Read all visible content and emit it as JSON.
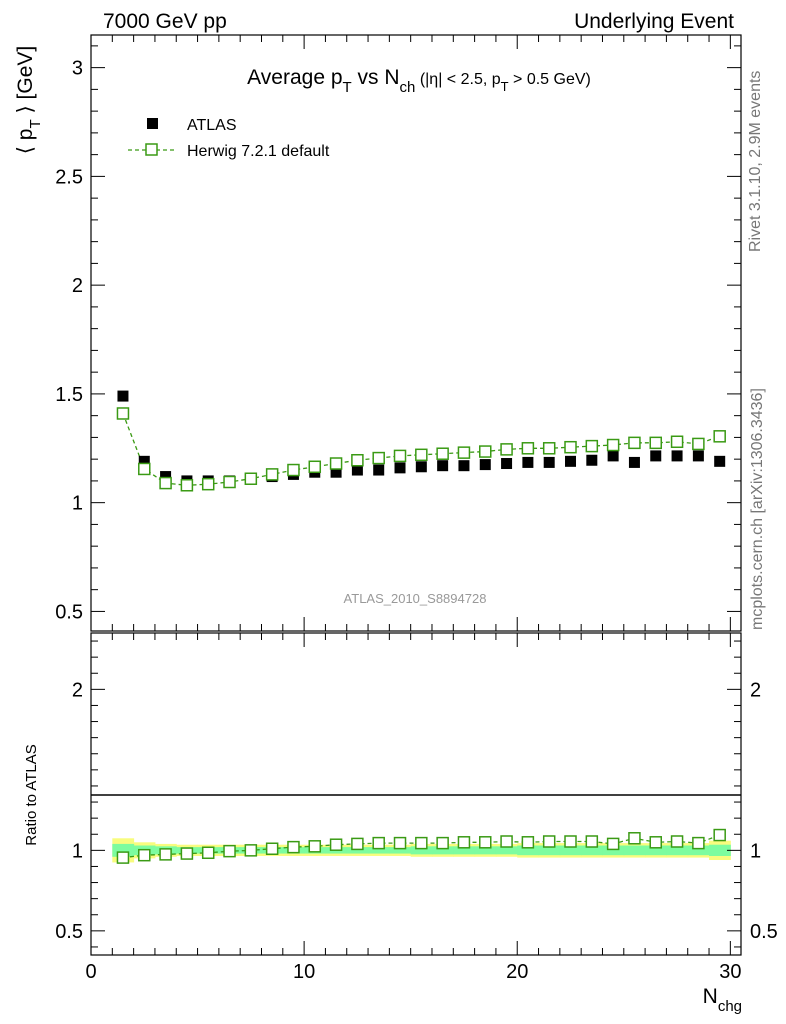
{
  "header": {
    "left": "7000 GeV pp",
    "right": "Underlying Event"
  },
  "side_labels": {
    "rivet": "Rivet 3.1.10,  2.9M events",
    "mcplots": "mcplots.cern.ch [arXiv:1306.3436]"
  },
  "analysis_id": "ATLAS_2010_S8894728",
  "colors": {
    "mc": "#3a9a14",
    "data": "#000000",
    "band_inner": "#7dfc9f",
    "band_outer": "#f8fc7e"
  },
  "chart_data": [
    {
      "type": "scatter",
      "panel": "main",
      "title": {
        "p1": "Average p",
        "p1_sub": "T",
        "p2": " vs N",
        "p2_sub": "ch",
        "p3": " (|η| < 2.5, p",
        "p3_sub": "T",
        "p4": " > 0.5 GeV)"
      },
      "ylabel": {
        "p1": "⟨ p",
        "p1_sub": "T",
        "p2": " ⟩ [GeV]"
      },
      "xlim": [
        0,
        30.5
      ],
      "ylim": [
        0.41,
        3.15
      ],
      "yticks": [
        "0.5",
        "1",
        "1.5",
        "2",
        "2.5",
        "3"
      ],
      "legend": {
        "position": "top-left"
      },
      "x": [
        1.5,
        2.5,
        3.5,
        4.5,
        5.5,
        6.5,
        7.5,
        8.5,
        9.5,
        10.5,
        11.5,
        12.5,
        13.5,
        14.5,
        15.5,
        16.5,
        17.5,
        18.5,
        19.5,
        20.5,
        21.5,
        22.5,
        23.5,
        24.5,
        25.5,
        26.5,
        27.5,
        28.5,
        29.5
      ],
      "series": [
        {
          "name": "ATLAS",
          "marker": "filled-square",
          "values": [
            1.49,
            1.19,
            1.12,
            1.1,
            1.1,
            1.1,
            1.11,
            1.12,
            1.13,
            1.14,
            1.14,
            1.15,
            1.15,
            1.16,
            1.165,
            1.17,
            1.17,
            1.175,
            1.18,
            1.185,
            1.185,
            1.19,
            1.195,
            1.215,
            1.185,
            1.215,
            1.215,
            1.215,
            1.19
          ]
        },
        {
          "name": "Herwig 7.2.1 default",
          "marker": "open-square-dashed",
          "values": [
            1.41,
            1.155,
            1.09,
            1.08,
            1.085,
            1.095,
            1.11,
            1.13,
            1.15,
            1.165,
            1.18,
            1.195,
            1.205,
            1.215,
            1.22,
            1.225,
            1.23,
            1.235,
            1.245,
            1.25,
            1.25,
            1.255,
            1.26,
            1.265,
            1.275,
            1.275,
            1.28,
            1.27,
            1.305
          ]
        }
      ]
    },
    {
      "type": "scatter",
      "panel": "ratio",
      "ylabel": "Ratio to ATLAS",
      "xlabel": {
        "p1": "N",
        "p1_sub": "chg"
      },
      "xlim": [
        0,
        30.5
      ],
      "ylim": [
        0.35,
        2.35
      ],
      "yticks": [
        "0.5",
        "1",
        "2"
      ],
      "xticks": [
        "0",
        "10",
        "20",
        "30"
      ],
      "x": [
        1.5,
        2.5,
        3.5,
        4.5,
        5.5,
        6.5,
        7.5,
        8.5,
        9.5,
        10.5,
        11.5,
        12.5,
        13.5,
        14.5,
        15.5,
        16.5,
        17.5,
        18.5,
        19.5,
        20.5,
        21.5,
        22.5,
        23.5,
        24.5,
        25.5,
        26.5,
        27.5,
        28.5,
        29.5
      ],
      "series": [
        {
          "name": "Herwig 7.2.1 default",
          "values": [
            0.955,
            0.97,
            0.975,
            0.98,
            0.985,
            0.995,
            1.0,
            1.01,
            1.02,
            1.025,
            1.035,
            1.04,
            1.045,
            1.045,
            1.045,
            1.045,
            1.05,
            1.05,
            1.055,
            1.05,
            1.055,
            1.055,
            1.055,
            1.04,
            1.075,
            1.05,
            1.055,
            1.045,
            1.095
          ]
        }
      ],
      "bands": {
        "inner_halfwidth": [
          0.04,
          0.03,
          0.025,
          0.02,
          0.02,
          0.02,
          0.02,
          0.02,
          0.02,
          0.02,
          0.02,
          0.02,
          0.02,
          0.02,
          0.025,
          0.025,
          0.025,
          0.025,
          0.025,
          0.03,
          0.03,
          0.03,
          0.03,
          0.03,
          0.03,
          0.03,
          0.03,
          0.03,
          0.035
        ],
        "outer_halfwidth": [
          0.075,
          0.05,
          0.04,
          0.035,
          0.035,
          0.035,
          0.035,
          0.035,
          0.035,
          0.035,
          0.035,
          0.035,
          0.035,
          0.035,
          0.04,
          0.04,
          0.04,
          0.04,
          0.04,
          0.045,
          0.045,
          0.045,
          0.045,
          0.045,
          0.045,
          0.045,
          0.045,
          0.045,
          0.06
        ]
      }
    }
  ]
}
